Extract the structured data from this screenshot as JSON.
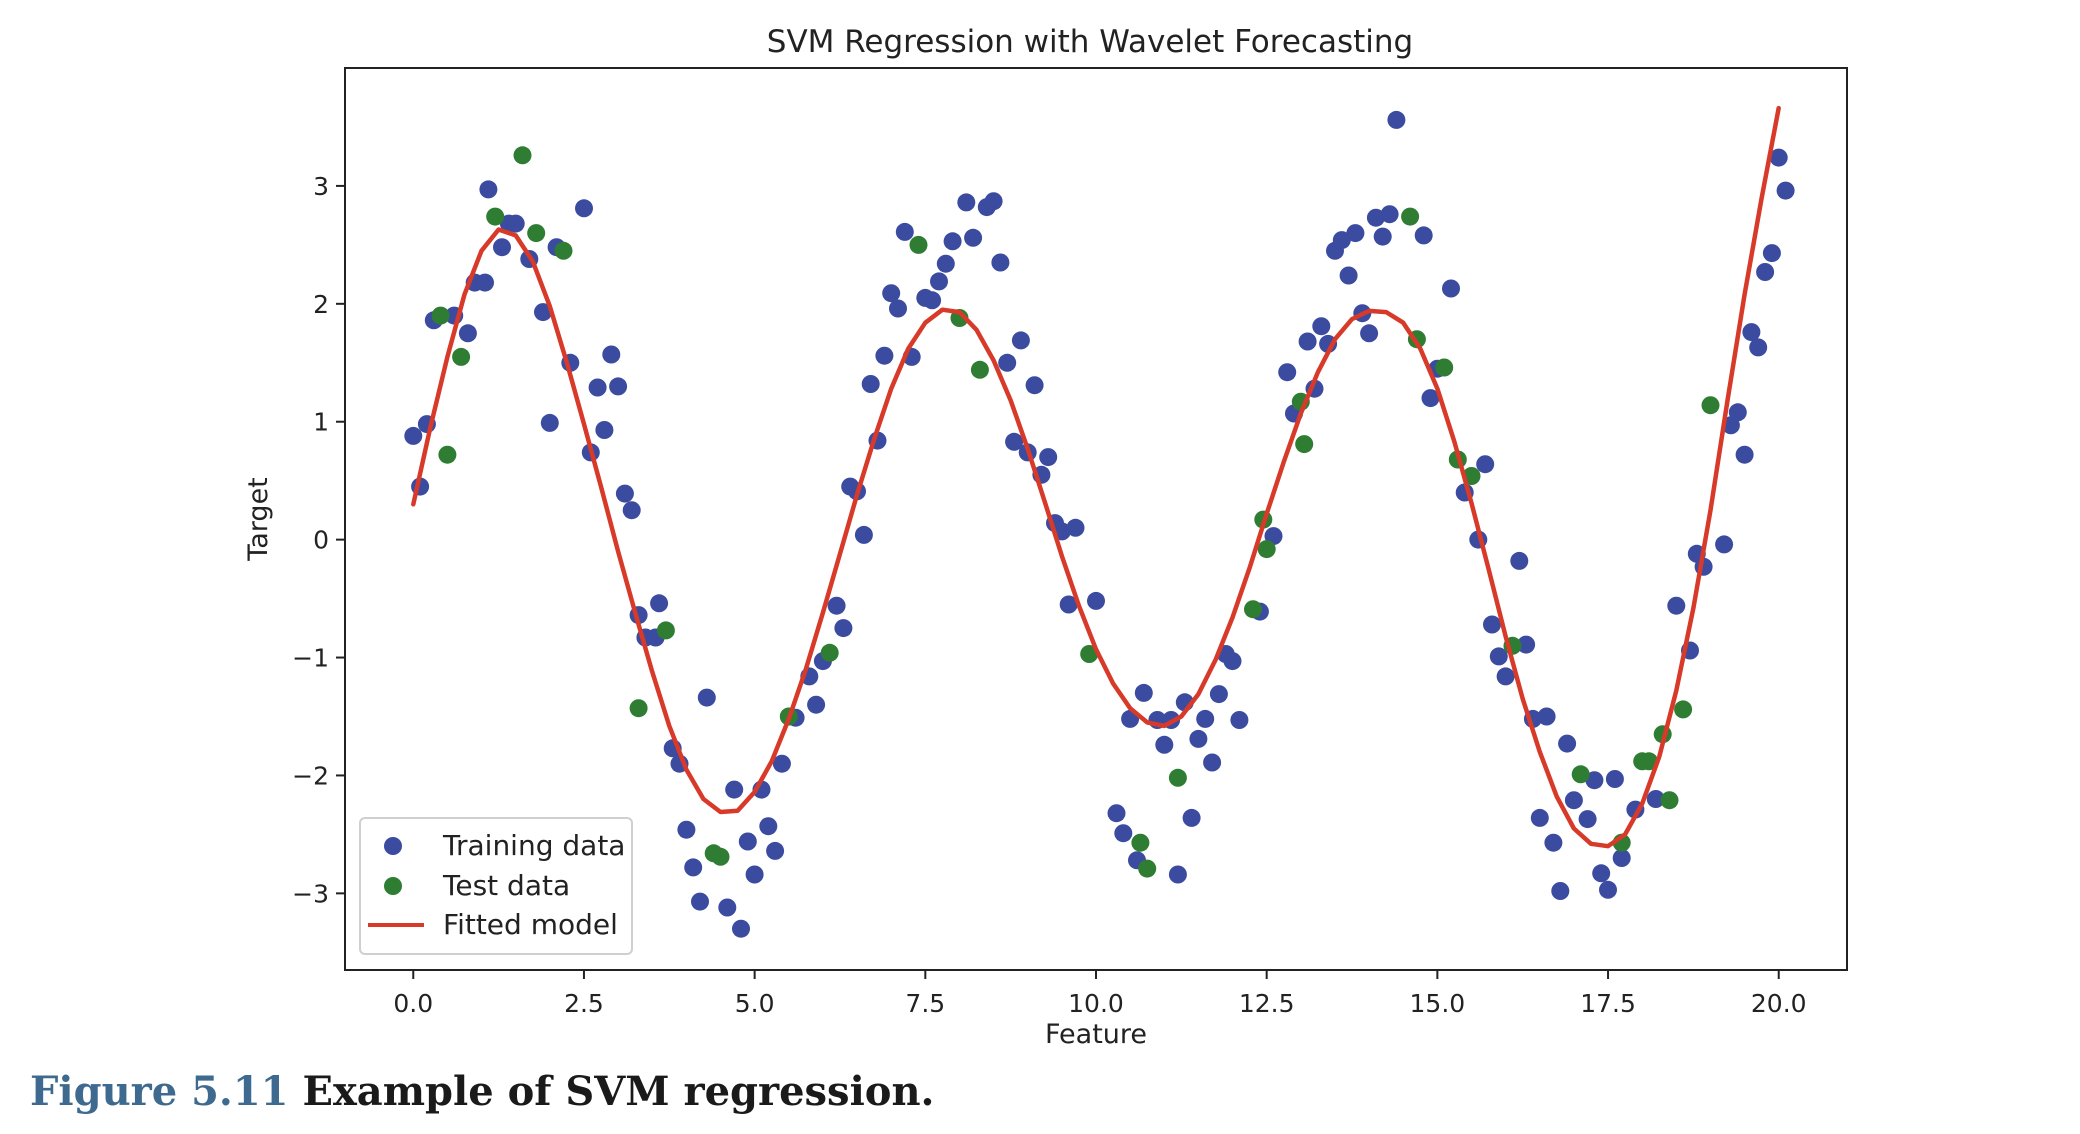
{
  "caption": {
    "label": "Figure 5.11",
    "text": "Example of SVM regression."
  },
  "colors": {
    "training": "#3b4ba0",
    "test": "#2e7d32",
    "fitted": "#d83a2a"
  },
  "chart_data": {
    "type": "scatter",
    "title": "SVM Regression with Wavelet Forecasting",
    "xlabel": "Feature",
    "ylabel": "Target",
    "xlim": [
      -1.0,
      21.0
    ],
    "ylim": [
      -3.65,
      4.0
    ],
    "xticks": [
      0.0,
      2.5,
      5.0,
      7.5,
      10.0,
      12.5,
      15.0,
      17.5,
      20.0
    ],
    "xtick_labels": [
      "0.0",
      "2.5",
      "5.0",
      "7.5",
      "10.0",
      "12.5",
      "15.0",
      "17.5",
      "20.0"
    ],
    "yticks": [
      -3,
      -2,
      -1,
      0,
      1,
      2,
      3
    ],
    "ytick_labels": [
      "−3",
      "−2",
      "−1",
      "0",
      "1",
      "2",
      "3"
    ],
    "grid": false,
    "legend_position": "lower-left",
    "series": [
      {
        "name": "Training data",
        "kind": "scatter",
        "points": [
          [
            0.0,
            0.88
          ],
          [
            0.1,
            0.45
          ],
          [
            0.2,
            0.98
          ],
          [
            0.3,
            1.86
          ],
          [
            0.6,
            1.9
          ],
          [
            0.8,
            1.75
          ],
          [
            0.9,
            2.18
          ],
          [
            1.05,
            2.18
          ],
          [
            1.1,
            2.97
          ],
          [
            1.3,
            2.48
          ],
          [
            1.4,
            2.68
          ],
          [
            1.5,
            2.68
          ],
          [
            1.7,
            2.38
          ],
          [
            1.9,
            1.93
          ],
          [
            2.0,
            0.99
          ],
          [
            2.1,
            2.48
          ],
          [
            2.3,
            1.5
          ],
          [
            2.5,
            2.81
          ],
          [
            2.6,
            0.74
          ],
          [
            2.7,
            1.29
          ],
          [
            2.8,
            0.93
          ],
          [
            2.9,
            1.57
          ],
          [
            3.0,
            1.3
          ],
          [
            3.1,
            0.39
          ],
          [
            3.2,
            0.25
          ],
          [
            3.3,
            -0.64
          ],
          [
            3.4,
            -0.83
          ],
          [
            3.55,
            -0.83
          ],
          [
            3.6,
            -0.54
          ],
          [
            3.8,
            -1.77
          ],
          [
            3.9,
            -1.9
          ],
          [
            4.0,
            -2.46
          ],
          [
            4.1,
            -2.78
          ],
          [
            4.2,
            -3.07
          ],
          [
            4.3,
            -1.34
          ],
          [
            4.6,
            -3.12
          ],
          [
            4.7,
            -2.12
          ],
          [
            4.8,
            -3.3
          ],
          [
            4.9,
            -2.56
          ],
          [
            5.0,
            -2.84
          ],
          [
            5.1,
            -2.12
          ],
          [
            5.2,
            -2.43
          ],
          [
            5.3,
            -2.64
          ],
          [
            5.4,
            -1.9
          ],
          [
            5.6,
            -1.51
          ],
          [
            5.8,
            -1.16
          ],
          [
            5.9,
            -1.4
          ],
          [
            6.0,
            -1.03
          ],
          [
            6.2,
            -0.56
          ],
          [
            6.3,
            -0.75
          ],
          [
            6.4,
            0.45
          ],
          [
            6.5,
            0.41
          ],
          [
            6.6,
            0.04
          ],
          [
            6.7,
            1.32
          ],
          [
            6.8,
            0.84
          ],
          [
            6.9,
            1.56
          ],
          [
            7.0,
            2.09
          ],
          [
            7.1,
            1.96
          ],
          [
            7.2,
            2.61
          ],
          [
            7.3,
            1.55
          ],
          [
            7.5,
            2.05
          ],
          [
            7.6,
            2.03
          ],
          [
            7.7,
            2.19
          ],
          [
            7.8,
            2.34
          ],
          [
            7.9,
            2.53
          ],
          [
            8.1,
            2.86
          ],
          [
            8.2,
            2.56
          ],
          [
            8.4,
            2.82
          ],
          [
            8.5,
            2.87
          ],
          [
            8.6,
            2.35
          ],
          [
            8.7,
            1.5
          ],
          [
            8.8,
            0.83
          ],
          [
            8.9,
            1.69
          ],
          [
            9.0,
            0.74
          ],
          [
            9.1,
            1.31
          ],
          [
            9.2,
            0.55
          ],
          [
            9.3,
            0.7
          ],
          [
            9.4,
            0.14
          ],
          [
            9.5,
            0.07
          ],
          [
            9.7,
            0.1
          ],
          [
            9.6,
            -0.55
          ],
          [
            10.0,
            -0.52
          ],
          [
            10.3,
            -2.32
          ],
          [
            10.4,
            -2.49
          ],
          [
            10.5,
            -1.52
          ],
          [
            10.6,
            -2.72
          ],
          [
            10.7,
            -1.3
          ],
          [
            10.9,
            -1.53
          ],
          [
            11.0,
            -1.74
          ],
          [
            11.1,
            -1.53
          ],
          [
            11.2,
            -2.84
          ],
          [
            11.3,
            -1.38
          ],
          [
            11.4,
            -2.36
          ],
          [
            11.5,
            -1.69
          ],
          [
            11.6,
            -1.52
          ],
          [
            11.7,
            -1.89
          ],
          [
            11.8,
            -1.31
          ],
          [
            11.9,
            -0.97
          ],
          [
            12.0,
            -1.03
          ],
          [
            12.1,
            -1.53
          ],
          [
            12.4,
            -0.61
          ],
          [
            12.6,
            0.03
          ],
          [
            12.8,
            1.42
          ],
          [
            12.9,
            1.07
          ],
          [
            13.1,
            1.68
          ],
          [
            13.2,
            1.28
          ],
          [
            13.3,
            1.81
          ],
          [
            13.4,
            1.66
          ],
          [
            13.5,
            2.45
          ],
          [
            13.6,
            2.54
          ],
          [
            13.7,
            2.24
          ],
          [
            13.8,
            2.6
          ],
          [
            13.9,
            1.92
          ],
          [
            14.0,
            1.75
          ],
          [
            14.1,
            2.73
          ],
          [
            14.2,
            2.57
          ],
          [
            14.3,
            2.76
          ],
          [
            14.4,
            3.56
          ],
          [
            14.8,
            2.58
          ],
          [
            14.9,
            1.2
          ],
          [
            15.0,
            1.45
          ],
          [
            15.2,
            2.13
          ],
          [
            15.4,
            0.4
          ],
          [
            15.6,
            0.0
          ],
          [
            15.7,
            0.64
          ],
          [
            15.8,
            -0.72
          ],
          [
            15.9,
            -0.99
          ],
          [
            16.0,
            -1.16
          ],
          [
            16.2,
            -0.18
          ],
          [
            16.3,
            -0.89
          ],
          [
            16.4,
            -1.52
          ],
          [
            16.5,
            -2.36
          ],
          [
            16.6,
            -1.5
          ],
          [
            16.7,
            -2.57
          ],
          [
            16.8,
            -2.98
          ],
          [
            16.9,
            -1.73
          ],
          [
            17.0,
            -2.21
          ],
          [
            17.2,
            -2.37
          ],
          [
            17.3,
            -2.04
          ],
          [
            17.4,
            -2.83
          ],
          [
            17.5,
            -2.97
          ],
          [
            17.6,
            -2.03
          ],
          [
            17.7,
            -2.7
          ],
          [
            17.9,
            -2.29
          ],
          [
            18.2,
            -2.2
          ],
          [
            18.5,
            -0.56
          ],
          [
            18.7,
            -0.94
          ],
          [
            18.8,
            -0.12
          ],
          [
            18.9,
            -0.23
          ],
          [
            19.2,
            -0.04
          ],
          [
            19.3,
            0.97
          ],
          [
            19.4,
            1.08
          ],
          [
            19.5,
            0.72
          ],
          [
            19.6,
            1.76
          ],
          [
            19.7,
            1.63
          ],
          [
            19.8,
            2.27
          ],
          [
            19.9,
            2.43
          ],
          [
            20.0,
            3.24
          ],
          [
            20.1,
            2.96
          ]
        ]
      },
      {
        "name": "Test data",
        "kind": "scatter",
        "points": [
          [
            0.4,
            1.9
          ],
          [
            0.5,
            0.72
          ],
          [
            0.7,
            1.55
          ],
          [
            1.2,
            2.74
          ],
          [
            1.6,
            3.26
          ],
          [
            1.8,
            2.6
          ],
          [
            2.2,
            2.45
          ],
          [
            3.3,
            -1.43
          ],
          [
            3.7,
            -0.77
          ],
          [
            4.4,
            -2.66
          ],
          [
            4.5,
            -2.69
          ],
          [
            5.5,
            -1.5
          ],
          [
            6.1,
            -0.96
          ],
          [
            7.4,
            2.5
          ],
          [
            8.0,
            1.88
          ],
          [
            8.3,
            1.44
          ],
          [
            9.9,
            -0.97
          ],
          [
            10.65,
            -2.57
          ],
          [
            10.75,
            -2.79
          ],
          [
            11.2,
            -2.02
          ],
          [
            12.3,
            -0.59
          ],
          [
            12.45,
            0.17
          ],
          [
            12.5,
            -0.08
          ],
          [
            13.0,
            1.17
          ],
          [
            13.05,
            0.81
          ],
          [
            14.6,
            2.74
          ],
          [
            14.7,
            1.7
          ],
          [
            15.1,
            1.46
          ],
          [
            15.3,
            0.68
          ],
          [
            15.5,
            0.54
          ],
          [
            16.1,
            -0.9
          ],
          [
            17.1,
            -1.99
          ],
          [
            17.7,
            -2.57
          ],
          [
            18.1,
            -1.88
          ],
          [
            18.0,
            -1.88
          ],
          [
            18.3,
            -1.65
          ],
          [
            18.4,
            -2.21
          ],
          [
            18.6,
            -1.44
          ],
          [
            19.0,
            1.14
          ]
        ]
      },
      {
        "name": "Fitted model",
        "kind": "line",
        "points": [
          [
            0.0,
            0.3
          ],
          [
            0.25,
            0.95
          ],
          [
            0.5,
            1.55
          ],
          [
            0.75,
            2.08
          ],
          [
            1.0,
            2.45
          ],
          [
            1.25,
            2.63
          ],
          [
            1.5,
            2.58
          ],
          [
            1.75,
            2.36
          ],
          [
            2.0,
            1.98
          ],
          [
            2.25,
            1.5
          ],
          [
            2.5,
            0.98
          ],
          [
            2.75,
            0.45
          ],
          [
            3.0,
            -0.1
          ],
          [
            3.25,
            -0.62
          ],
          [
            3.5,
            -1.12
          ],
          [
            3.75,
            -1.58
          ],
          [
            4.0,
            -1.95
          ],
          [
            4.25,
            -2.2
          ],
          [
            4.5,
            -2.31
          ],
          [
            4.75,
            -2.3
          ],
          [
            5.0,
            -2.14
          ],
          [
            5.25,
            -1.88
          ],
          [
            5.5,
            -1.52
          ],
          [
            5.75,
            -1.1
          ],
          [
            6.0,
            -0.62
          ],
          [
            6.25,
            -0.12
          ],
          [
            6.5,
            0.38
          ],
          [
            6.75,
            0.85
          ],
          [
            7.0,
            1.28
          ],
          [
            7.25,
            1.62
          ],
          [
            7.5,
            1.84
          ],
          [
            7.75,
            1.95
          ],
          [
            8.0,
            1.93
          ],
          [
            8.25,
            1.78
          ],
          [
            8.5,
            1.52
          ],
          [
            8.75,
            1.18
          ],
          [
            9.0,
            0.77
          ],
          [
            9.25,
            0.32
          ],
          [
            9.5,
            -0.14
          ],
          [
            9.75,
            -0.56
          ],
          [
            10.0,
            -0.93
          ],
          [
            10.25,
            -1.22
          ],
          [
            10.5,
            -1.43
          ],
          [
            10.75,
            -1.55
          ],
          [
            11.0,
            -1.58
          ],
          [
            11.25,
            -1.5
          ],
          [
            11.5,
            -1.31
          ],
          [
            11.75,
            -1.02
          ],
          [
            12.0,
            -0.66
          ],
          [
            12.25,
            -0.24
          ],
          [
            12.5,
            0.22
          ],
          [
            12.75,
            0.66
          ],
          [
            13.0,
            1.07
          ],
          [
            13.25,
            1.42
          ],
          [
            13.5,
            1.7
          ],
          [
            13.75,
            1.87
          ],
          [
            14.0,
            1.94
          ],
          [
            14.25,
            1.93
          ],
          [
            14.5,
            1.84
          ],
          [
            14.75,
            1.62
          ],
          [
            15.0,
            1.28
          ],
          [
            15.25,
            0.83
          ],
          [
            15.5,
            0.31
          ],
          [
            15.75,
            -0.25
          ],
          [
            16.0,
            -0.82
          ],
          [
            16.25,
            -1.35
          ],
          [
            16.5,
            -1.8
          ],
          [
            16.75,
            -2.18
          ],
          [
            17.0,
            -2.45
          ],
          [
            17.25,
            -2.58
          ],
          [
            17.5,
            -2.6
          ],
          [
            17.75,
            -2.5
          ],
          [
            18.0,
            -2.24
          ],
          [
            18.25,
            -1.84
          ],
          [
            18.5,
            -1.28
          ],
          [
            18.75,
            -0.58
          ],
          [
            19.0,
            0.25
          ],
          [
            19.25,
            1.18
          ],
          [
            19.5,
            2.08
          ],
          [
            19.75,
            2.9
          ],
          [
            20.0,
            3.66
          ]
        ]
      }
    ]
  }
}
